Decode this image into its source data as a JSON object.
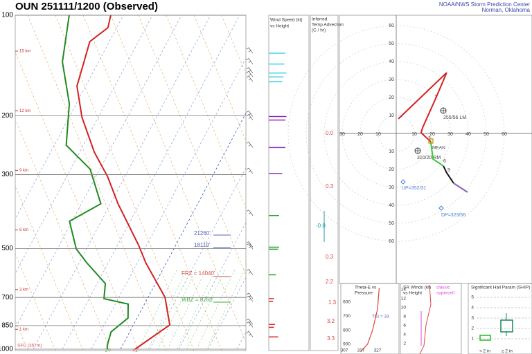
{
  "header": {
    "title": "OUN  251111/1200  (Observed)",
    "org": "NOAA/NWS Storm Prediction Center",
    "location": "Norman, Oklahoma"
  },
  "chart_data": {
    "type": "skewt",
    "pressure_ticks": [
      100,
      200,
      300,
      500,
      700,
      850,
      1000
    ],
    "height_labels": [
      {
        "value": 15,
        "label": "15 km"
      },
      {
        "value": 12,
        "label": "12 km"
      },
      {
        "value": 9,
        "label": "9 km"
      },
      {
        "value": 6,
        "label": "6 km"
      },
      {
        "value": 3,
        "label": "3 km"
      },
      {
        "value": 1,
        "label": "1 km"
      }
    ],
    "surface_label": "SFC (357m)",
    "surface_dewpoint": "24",
    "surface_temperature": "41",
    "annotations": [
      "21260'",
      "18119'",
      "FRZ = 14040'",
      "WBZ = 8260'"
    ],
    "temperature": {
      "color": "#d42020",
      "pressure": [
        1000,
        846,
        699,
        551,
        489,
        367,
        304,
        257,
        202,
        163,
        138,
        120,
        109,
        100
      ],
      "values": [
        5,
        12.5,
        5.8,
        -7.1,
        -12.7,
        -27.4,
        -36,
        -45,
        -55.6,
        -63,
        -65,
        -66.7,
        -63,
        -64.3
      ]
    },
    "dewpoint": {
      "color": "#1f8a1f",
      "pressure": [
        1000,
        977,
        888,
        807,
        733,
        706,
        636,
        551,
        501,
        414,
        367,
        289,
        245,
        184,
        138,
        100
      ],
      "values": [
        -4.5,
        -5.2,
        -6.4,
        -3.1,
        -5.6,
        -14.9,
        -17.2,
        -27.4,
        -33.5,
        -40.9,
        -33.3,
        -43.3,
        -55.9,
        -62.4,
        -72.4,
        -78.6
      ]
    },
    "wind_panel": {
      "title": "Wind Speed (kt)",
      "subtitle": "vs Height",
      "pressure": [
        130,
        140,
        149,
        153,
        158,
        201,
        206,
        249,
        298,
        398,
        495,
        502,
        599,
        706,
        720,
        843,
        860,
        919
      ],
      "speed": [
        80,
        75,
        85,
        70,
        65,
        85,
        80,
        80,
        65,
        50,
        50,
        45,
        35,
        25,
        20,
        30,
        25,
        45
      ],
      "colors": [
        "#3cd0e0",
        "#3cd0e0",
        "#3cd0e0",
        "#3cd0e0",
        "#3cd0e0",
        "#8a2fbf",
        "#8a2fbf",
        "#8a2fbf",
        "#8a2fbf",
        "#2aa02a",
        "#2aa02a",
        "#2aa02a",
        "#2aa02a",
        "#e02020",
        "#e02020",
        "#e02020",
        "#e02020",
        "#e02020"
      ]
    },
    "advection": {
      "title": [
        "Inferred",
        "Temp Advection",
        "(C / hr)"
      ],
      "values": [
        "0.0",
        "0.3",
        "-0.0",
        "0.3",
        "2.2",
        "1.3",
        "3.2",
        "3.3"
      ]
    },
    "hodograph": {
      "rings": [
        10,
        20,
        30,
        40,
        50,
        60
      ],
      "segments": [
        {
          "color": "#d42020",
          "u": [
            1.2,
            28,
            22.3,
            14.6,
            13.8,
            19.2
          ],
          "v": [
            8.1,
            33.8,
            20.4,
            3.1,
            0.4,
            -4.6
          ]
        },
        {
          "color": "#33cc33",
          "u": [
            19.2,
            20.4,
            26.2
          ],
          "v": [
            -4.6,
            -14.2,
            -18.1
          ]
        },
        {
          "color": "#111111",
          "u": [
            26.2,
            28,
            31.9
          ],
          "v": [
            -18.1,
            -21.9,
            -27.7
          ]
        },
        {
          "color": "#8a5fc0",
          "u": [
            31.9,
            39.6
          ],
          "v": [
            -27.7,
            -32.7
          ]
        }
      ],
      "labels": [
        "255/56 LM",
        "310/20 RM",
        "UP=352/31",
        "DP=323/56",
        "1",
        "3",
        "6",
        "9",
        "MEAN"
      ]
    },
    "theta_e": {
      "title": [
        "Theta-E vs",
        "Pressure"
      ],
      "index": "TEI = 33",
      "pticks": [
        600,
        700,
        800,
        900
      ],
      "xticks": [
        307,
        317,
        327
      ],
      "pressure": [
        500,
        650,
        800,
        900,
        950
      ],
      "values": [
        328,
        327,
        324,
        321,
        317
      ]
    },
    "sr_winds": {
      "title": [
        "SR Winds (kt)",
        "vs Height"
      ],
      "ticks": [
        14,
        12,
        10,
        8,
        6,
        4,
        2
      ],
      "legend": [
        "classic",
        "supercell"
      ]
    },
    "ship": {
      "title": "Significant Hail Param (SHIP)",
      "ticks": [
        5,
        4,
        3,
        2,
        1
      ],
      "xlabels": [
        "< 2 in",
        "≥ 2 in"
      ]
    }
  }
}
